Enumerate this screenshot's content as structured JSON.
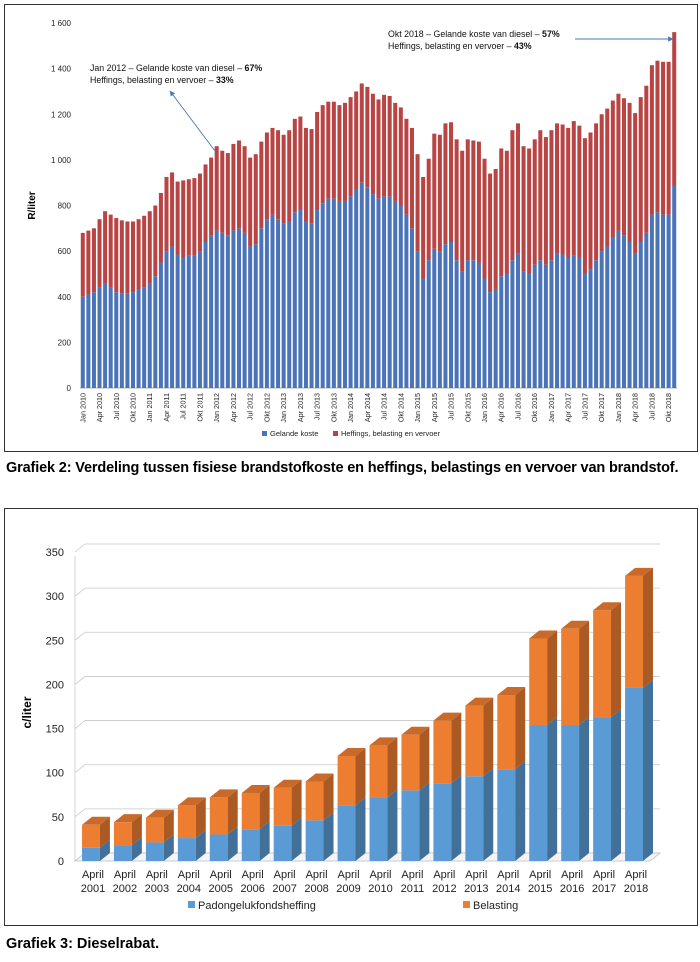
{
  "chart_data": [
    {
      "type": "bar",
      "stacked": true,
      "ylabel": "R/liter",
      "ylim": [
        0,
        1600
      ],
      "yticks": [
        "0",
        "200",
        "400",
        "600",
        "800",
        "1 000",
        "1 200",
        "1 400",
        "1 600"
      ],
      "xtick_labels": [
        "Jan 2010",
        "Apr 2010",
        "Jul 2010",
        "Okt 2010",
        "Jan 2011",
        "Apr 2011",
        "Jul 2011",
        "Okt 2011",
        "Jan 2012",
        "Apr 2012",
        "Jul 2012",
        "Okt 2012",
        "Jan 2013",
        "Apr 2013",
        "Jul 2013",
        "Okt 2013",
        "Jan 2014",
        "Apr 2014",
        "Jul 2014",
        "Okt 2014",
        "Jan 2015",
        "Apr 2015",
        "Jul 2015",
        "Okt 2015",
        "Jan 2016",
        "Apr 2016",
        "Jul 2016",
        "Okt 2016",
        "Jan 2017",
        "Apr 2017",
        "Jul 2017",
        "Okt 2017",
        "Jan 2018",
        "Apr 2018",
        "Jul 2018",
        "Okt 2018"
      ],
      "totals": [
        680,
        690,
        700,
        740,
        775,
        760,
        745,
        735,
        730,
        730,
        740,
        755,
        775,
        800,
        855,
        925,
        945,
        905,
        910,
        915,
        920,
        940,
        980,
        1010,
        1060,
        1040,
        1030,
        1070,
        1085,
        1060,
        1010,
        1025,
        1080,
        1120,
        1140,
        1130,
        1110,
        1130,
        1180,
        1190,
        1140,
        1135,
        1210,
        1240,
        1255,
        1255,
        1240,
        1250,
        1275,
        1300,
        1335,
        1320,
        1290,
        1265,
        1285,
        1280,
        1250,
        1230,
        1180,
        1140,
        1025,
        925,
        1005,
        1115,
        1110,
        1160,
        1165,
        1090,
        1040,
        1090,
        1085,
        1080,
        1005,
        940,
        960,
        1050,
        1040,
        1130,
        1160,
        1060,
        1050,
        1090,
        1130,
        1100,
        1130,
        1160,
        1155,
        1140,
        1170,
        1150,
        1095,
        1120,
        1160,
        1200,
        1225,
        1260,
        1290,
        1270,
        1250,
        1205,
        1275,
        1325,
        1415,
        1435,
        1430,
        1430,
        1560
      ],
      "series": [
        {
          "name": "Gelande koste",
          "color": "#4b74b8",
          "values": [
            400,
            410,
            420,
            440,
            460,
            440,
            420,
            415,
            415,
            420,
            430,
            440,
            460,
            490,
            550,
            600,
            620,
            585,
            570,
            580,
            580,
            600,
            640,
            670,
            690,
            680,
            670,
            690,
            700,
            680,
            620,
            630,
            700,
            740,
            760,
            740,
            720,
            730,
            770,
            780,
            730,
            720,
            780,
            810,
            830,
            830,
            820,
            820,
            840,
            870,
            900,
            880,
            850,
            830,
            840,
            840,
            820,
            800,
            760,
            700,
            600,
            480,
            560,
            610,
            600,
            630,
            640,
            560,
            510,
            560,
            560,
            550,
            480,
            420,
            430,
            490,
            500,
            560,
            590,
            510,
            500,
            540,
            560,
            540,
            560,
            590,
            585,
            570,
            580,
            570,
            500,
            520,
            560,
            600,
            620,
            660,
            690,
            670,
            640,
            590,
            640,
            680,
            760,
            770,
            760,
            760,
            890
          ]
        },
        {
          "name": "Heffings, belasting en vervoer",
          "color": "#b84444"
        }
      ],
      "annotations": [
        {
          "line1_prefix": "Jan 2012 – Gelande koste van diesel – ",
          "line1_value": "67%",
          "line2_prefix": "Heffings, belasting en vervoer – ",
          "line2_value": "33%"
        },
        {
          "line1_prefix": "Okt 2018 – Gelande koste van diesel – ",
          "line1_value": "57%",
          "line2_prefix": "Heffings, belasting en vervoer – ",
          "line2_value": "43%"
        }
      ],
      "caption": "Grafiek 2: Verdeling tussen fisiese brandstofkoste en heffings, belastings en vervoer van brandstof."
    },
    {
      "type": "bar",
      "stacked": true,
      "three_d": true,
      "ylabel": "c/liter",
      "ylim": [
        0,
        350
      ],
      "yticks": [
        "0",
        "50",
        "100",
        "150",
        "200",
        "250",
        "300",
        "350"
      ],
      "categories": [
        [
          "April",
          "2001"
        ],
        [
          "April",
          "2002"
        ],
        [
          "April",
          "2003"
        ],
        [
          "April",
          "2004"
        ],
        [
          "April",
          "2005"
        ],
        [
          "April",
          "2006"
        ],
        [
          "April",
          "2007"
        ],
        [
          "April",
          "2008"
        ],
        [
          "April",
          "2009"
        ],
        [
          "April",
          "2010"
        ],
        [
          "April",
          "2011"
        ],
        [
          "April",
          "2012"
        ],
        [
          "April",
          "2013"
        ],
        [
          "April",
          "2014"
        ],
        [
          "April",
          "2015"
        ],
        [
          "April",
          "2016"
        ],
        [
          "April",
          "2017"
        ],
        [
          "April",
          "2018"
        ]
      ],
      "series": [
        {
          "name": "Padongelukfondsheffing",
          "color": "#5b9bd5",
          "values": [
            15,
            18,
            21,
            26,
            30,
            36,
            40,
            46,
            63,
            72,
            80,
            88,
            96,
            104,
            154,
            154,
            163,
            196
          ]
        },
        {
          "name": "Belasting",
          "color": "#ed7d31",
          "values": [
            26,
            26,
            28,
            37,
            42,
            41,
            43,
            44,
            56,
            59,
            63,
            71,
            80,
            84,
            98,
            109,
            121,
            127
          ]
        }
      ],
      "caption": "Grafiek 3: Dieselrabat."
    }
  ]
}
